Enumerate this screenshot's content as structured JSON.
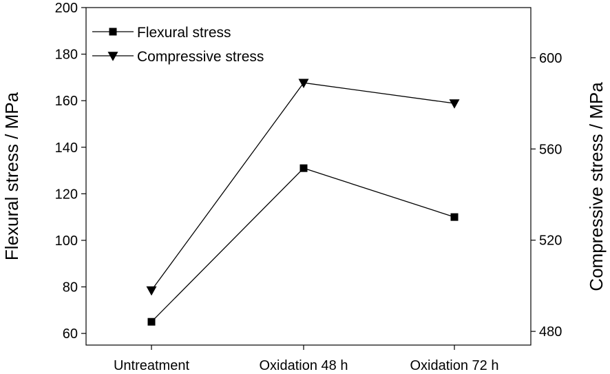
{
  "chart_data": {
    "type": "line",
    "categories": [
      "Untreatment",
      "Oxidation 48 h",
      "Oxidation 72 h"
    ],
    "series": [
      {
        "name": "Flexural stress",
        "axis": "left",
        "marker": "square",
        "values": [
          65,
          131,
          110
        ]
      },
      {
        "name": "Compressive stress",
        "axis": "right",
        "marker": "triangle-down",
        "values": [
          498,
          589,
          580
        ]
      }
    ],
    "ylabel": "Flexural stress / MPa",
    "ylabel_right": "Compressive stress / MPa",
    "ylim": [
      55,
      200
    ],
    "ylim_right": [
      474,
      622
    ],
    "yticks": [
      60,
      80,
      100,
      120,
      140,
      160,
      180,
      200
    ],
    "yticks_right": [
      480,
      520,
      560,
      600
    ],
    "grid": false,
    "legend_position": "top-left",
    "colors": {
      "line": "#000000",
      "background": "#ffffff"
    }
  }
}
